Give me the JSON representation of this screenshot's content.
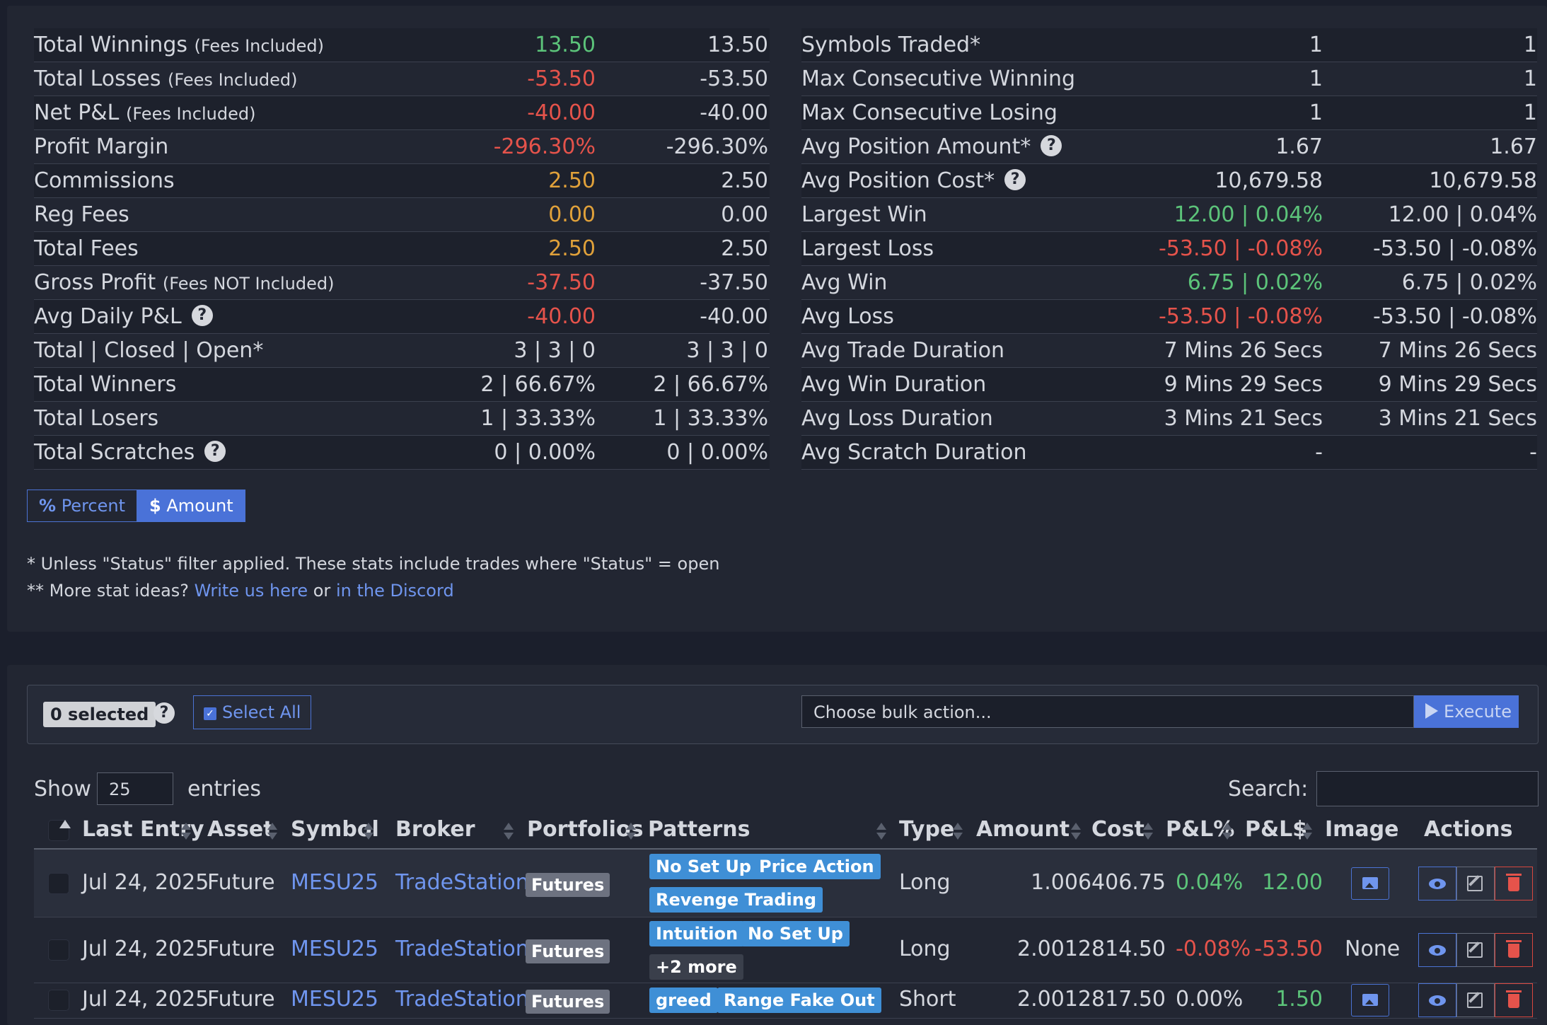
{
  "stats_left": [
    {
      "label": "Total Winnings",
      "sub": "(Fees Included)",
      "v1": "13.50",
      "v1c": "green",
      "v2": "13.50",
      "help": false
    },
    {
      "label": "Total Losses",
      "sub": "(Fees Included)",
      "v1": "-53.50",
      "v1c": "red",
      "v2": "-53.50",
      "help": false
    },
    {
      "label": "Net P&L",
      "sub": "(Fees Included)",
      "v1": "-40.00",
      "v1c": "red",
      "v2": "-40.00",
      "help": false
    },
    {
      "label": "Profit Margin",
      "sub": "",
      "v1": "-296.30%",
      "v1c": "red",
      "v2": "-296.30%",
      "help": false
    },
    {
      "label": "Commissions",
      "sub": "",
      "v1": "2.50",
      "v1c": "orange",
      "v2": "2.50",
      "help": false
    },
    {
      "label": "Reg Fees",
      "sub": "",
      "v1": "0.00",
      "v1c": "orange",
      "v2": "0.00",
      "help": false
    },
    {
      "label": "Total Fees",
      "sub": "",
      "v1": "2.50",
      "v1c": "orange",
      "v2": "2.50",
      "help": false
    },
    {
      "label": "Gross Profit",
      "sub": "(Fees NOT Included)",
      "v1": "-37.50",
      "v1c": "red",
      "v2": "-37.50",
      "help": false
    },
    {
      "label": "Avg Daily P&L",
      "sub": "",
      "v1": "-40.00",
      "v1c": "red",
      "v2": "-40.00",
      "help": true
    },
    {
      "label": "Total | Closed | Open*",
      "sub": "",
      "v1": "3 | 3 | 0",
      "v1c": "",
      "v2": "3 | 3 | 0",
      "help": false
    },
    {
      "label": "Total Winners",
      "sub": "",
      "v1": "2 | 66.67%",
      "v1c": "",
      "v2": "2 | 66.67%",
      "help": false
    },
    {
      "label": "Total Losers",
      "sub": "",
      "v1": "1 | 33.33%",
      "v1c": "",
      "v2": "1 | 33.33%",
      "help": false
    },
    {
      "label": "Total Scratches",
      "sub": "",
      "v1": "0 | 0.00%",
      "v1c": "",
      "v2": "0 | 0.00%",
      "help": true
    }
  ],
  "stats_right": [
    {
      "label": "Symbols Traded*",
      "sub": "",
      "v1": "1",
      "v1c": "",
      "v2": "1",
      "help": false
    },
    {
      "label": "Max Consecutive Winning",
      "sub": "",
      "v1": "1",
      "v1c": "",
      "v2": "1",
      "help": false
    },
    {
      "label": "Max Consecutive Losing",
      "sub": "",
      "v1": "1",
      "v1c": "",
      "v2": "1",
      "help": false
    },
    {
      "label": "Avg Position Amount*",
      "sub": "",
      "v1": "1.67",
      "v1c": "",
      "v2": "1.67",
      "help": true
    },
    {
      "label": "Avg Position Cost*",
      "sub": "",
      "v1": "10,679.58",
      "v1c": "",
      "v2": "10,679.58",
      "help": true
    },
    {
      "label": "Largest Win",
      "sub": "",
      "v1": "12.00 | 0.04%",
      "v1c": "green",
      "v2": "12.00 | 0.04%",
      "help": false
    },
    {
      "label": "Largest Loss",
      "sub": "",
      "v1": "-53.50 | -0.08%",
      "v1c": "red",
      "v2": "-53.50 | -0.08%",
      "help": false
    },
    {
      "label": "Avg Win",
      "sub": "",
      "v1": "6.75 | 0.02%",
      "v1c": "green",
      "v2": "6.75 | 0.02%",
      "help": false
    },
    {
      "label": "Avg Loss",
      "sub": "",
      "v1": "-53.50 | -0.08%",
      "v1c": "red",
      "v2": "-53.50 | -0.08%",
      "help": false
    },
    {
      "label": "Avg Trade Duration",
      "sub": "",
      "v1": "7 Mins 26 Secs",
      "v1c": "",
      "v2": "7 Mins 26 Secs",
      "help": false
    },
    {
      "label": "Avg Win Duration",
      "sub": "",
      "v1": "9 Mins 29 Secs",
      "v1c": "",
      "v2": "9 Mins 29 Secs",
      "help": false
    },
    {
      "label": "Avg Loss Duration",
      "sub": "",
      "v1": "3 Mins 21 Secs",
      "v1c": "",
      "v2": "3 Mins 21 Secs",
      "help": false
    },
    {
      "label": "Avg Scratch Duration",
      "sub": "",
      "v1": "-",
      "v1c": "",
      "v2": "-",
      "help": false
    }
  ],
  "toggle": {
    "percent_icon": "%",
    "percent": "Percent",
    "amount_icon": "$",
    "amount": "Amount"
  },
  "notes": {
    "line1": "* Unless \"Status\" filter applied. These stats include trades where \"Status\" = open",
    "line2_prefix": "** More stat ideas?",
    "link1": "Write us here",
    "or": "or",
    "link2": "in the Discord"
  },
  "bulk": {
    "selected": "0 selected",
    "help": "?",
    "select_all": "Select All",
    "action_placeholder": "Choose bulk action...",
    "execute": "Execute"
  },
  "table_controls": {
    "show": "Show",
    "entries_value": "25",
    "entries": "entries",
    "search": "Search:"
  },
  "columns": [
    "Last Entry",
    "Asset",
    "Symbol",
    "Broker",
    "Portfolios",
    "Patterns",
    "Type",
    "Amount",
    "Cost",
    "P&L%",
    "P&L$",
    "Image",
    "Actions"
  ],
  "rows": [
    {
      "date": "Jul 24, 2025",
      "asset": "Future",
      "symbol": "MESU25",
      "broker": "TradeStation",
      "portfolio": "Futures",
      "patterns": [
        [
          "No Set Up",
          "Price Action"
        ],
        [
          "Revenge Trading"
        ]
      ],
      "type": "Long",
      "amount_cost": "1.006406.75",
      "pnl_pct": "0.04%",
      "pnl_pct_c": "green",
      "pnl_usd": "12.00",
      "pnl_usd_c": "green",
      "image": "icon"
    },
    {
      "date": "Jul 24, 2025",
      "asset": "Future",
      "symbol": "MESU25",
      "broker": "TradeStation",
      "portfolio": "Futures",
      "patterns": [
        [
          "Intuition",
          "No Set Up"
        ],
        [
          "+2 more"
        ]
      ],
      "type": "Long",
      "amount_cost": "2.0012814.50",
      "pnl_pct": "-0.08%",
      "pnl_pct_c": "red",
      "pnl_usd": "-53.50",
      "pnl_usd_c": "red",
      "image": "None"
    },
    {
      "date": "Jul 24, 2025",
      "asset": "Future",
      "symbol": "MESU25",
      "broker": "TradeStation",
      "portfolio": "Futures",
      "patterns": [
        [
          "greed",
          "Range Fake Out"
        ]
      ],
      "type": "Short",
      "amount_cost": "2.0012817.50",
      "pnl_pct": "0.00%",
      "pnl_pct_c": "",
      "pnl_usd": "1.50",
      "pnl_usd_c": "green",
      "image": "icon"
    }
  ]
}
